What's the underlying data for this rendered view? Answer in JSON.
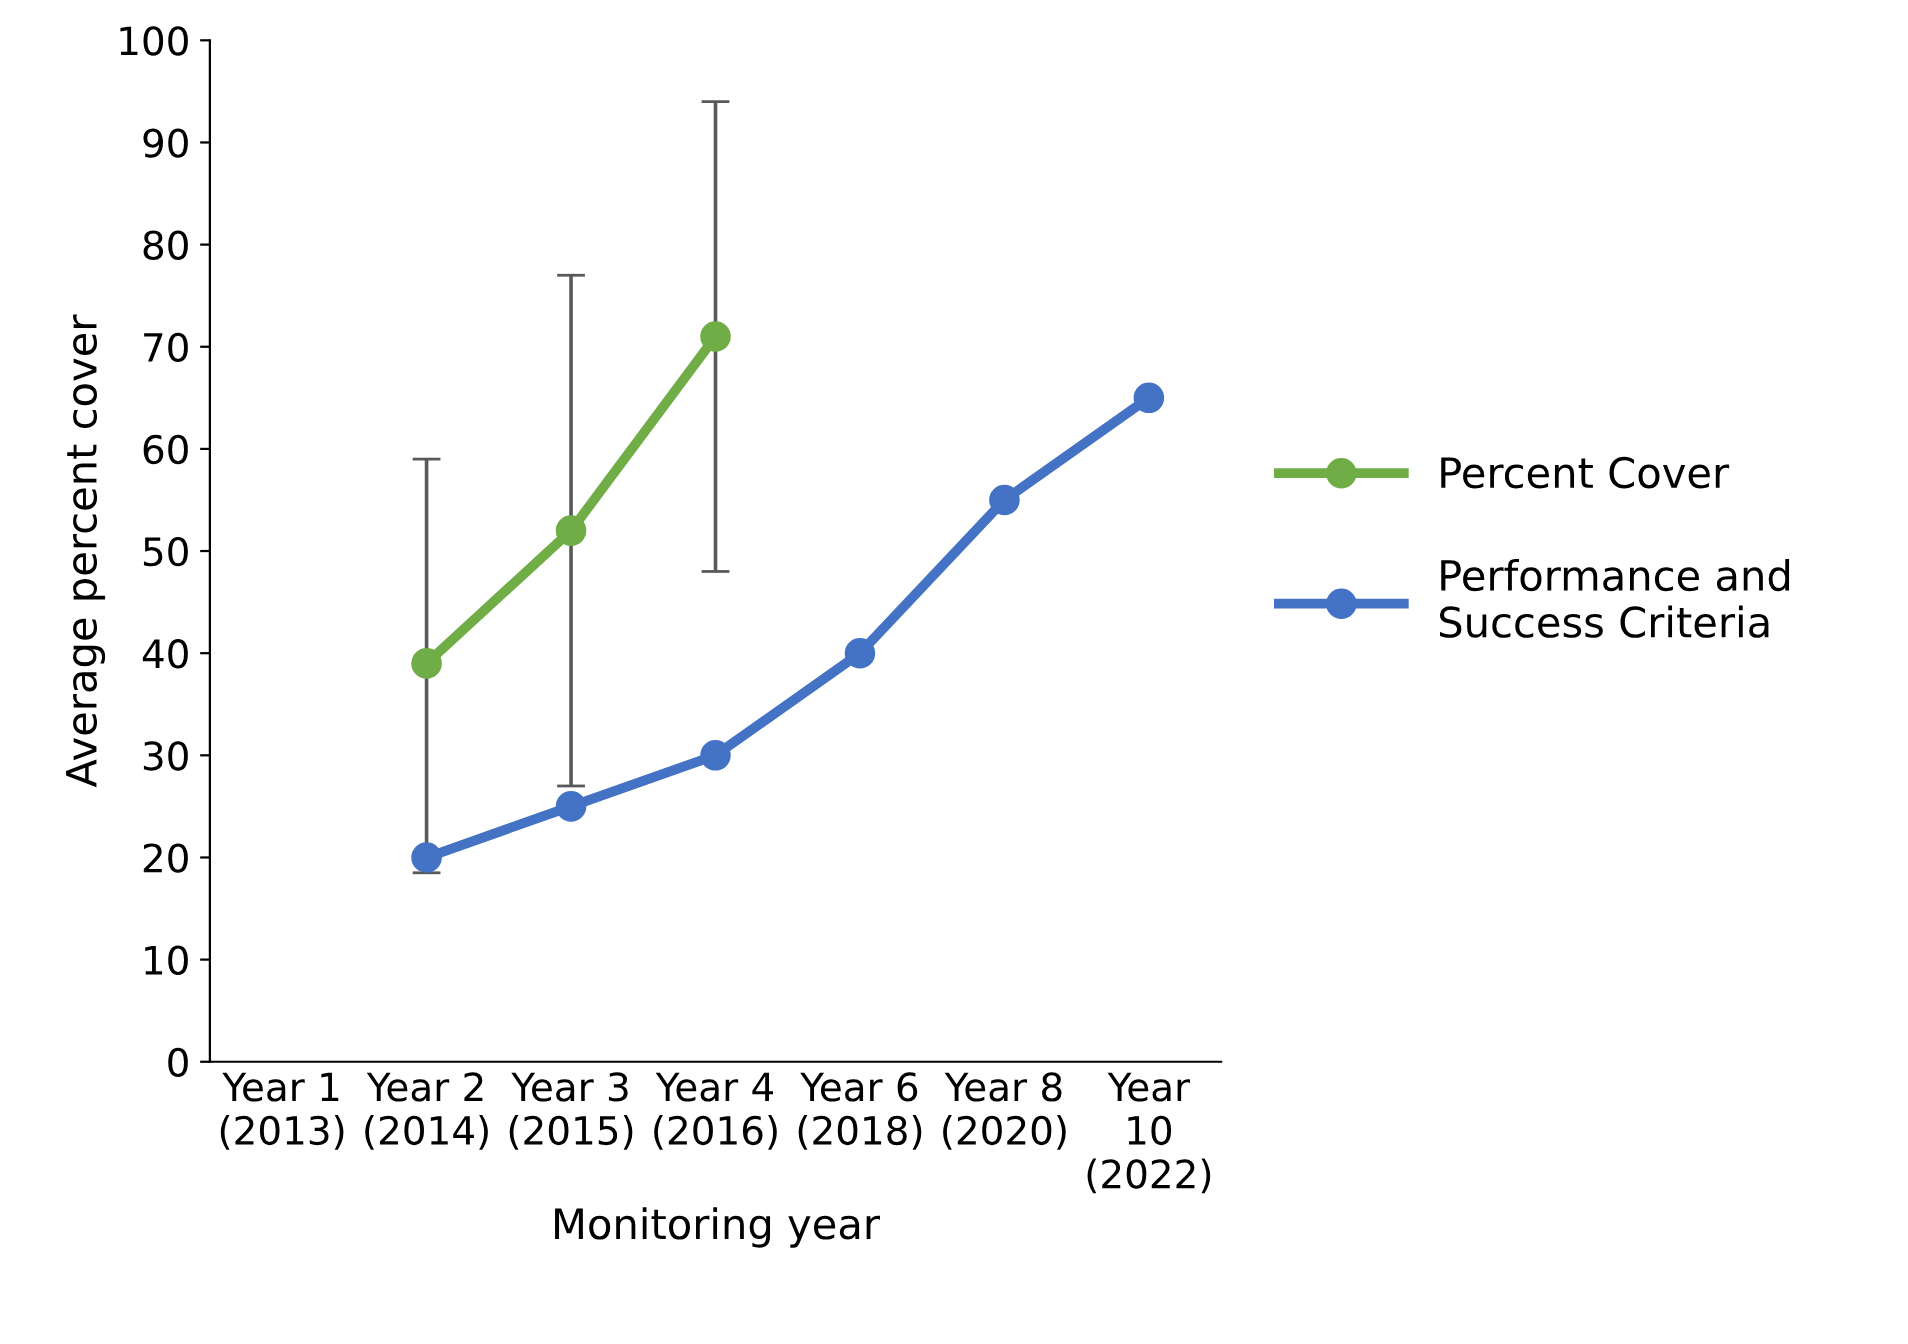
{
  "chart_data": {
    "type": "line",
    "xlabel": "Monitoring year",
    "ylabel": "Average percent cover",
    "categories": [
      "Year 1\n(2013)",
      "Year 2\n(2014)",
      "Year 3\n(2015)",
      "Year 4\n(2016)",
      "Year 6\n(2018)",
      "Year 8\n(2020)",
      "Year\n10\n(2022)"
    ],
    "series": [
      {
        "name": "Percent Cover",
        "color": "#70ad47",
        "values": [
          null,
          39,
          52,
          71,
          null,
          null,
          null
        ],
        "errors": [
          null,
          [
            18.5,
            59
          ],
          [
            27,
            77
          ],
          [
            48,
            94
          ],
          null,
          null,
          null
        ]
      },
      {
        "name": "Performance and\nSuccess Criteria",
        "color": "#4472c4",
        "values": [
          null,
          20,
          25,
          30,
          40,
          55,
          65
        ]
      }
    ],
    "ylim": [
      0,
      100
    ],
    "yticks": [
      0,
      10,
      20,
      30,
      40,
      50,
      60,
      70,
      80,
      90,
      100
    ],
    "grid": false,
    "legend": "right",
    "marker": "circle",
    "line_style": "solid"
  }
}
